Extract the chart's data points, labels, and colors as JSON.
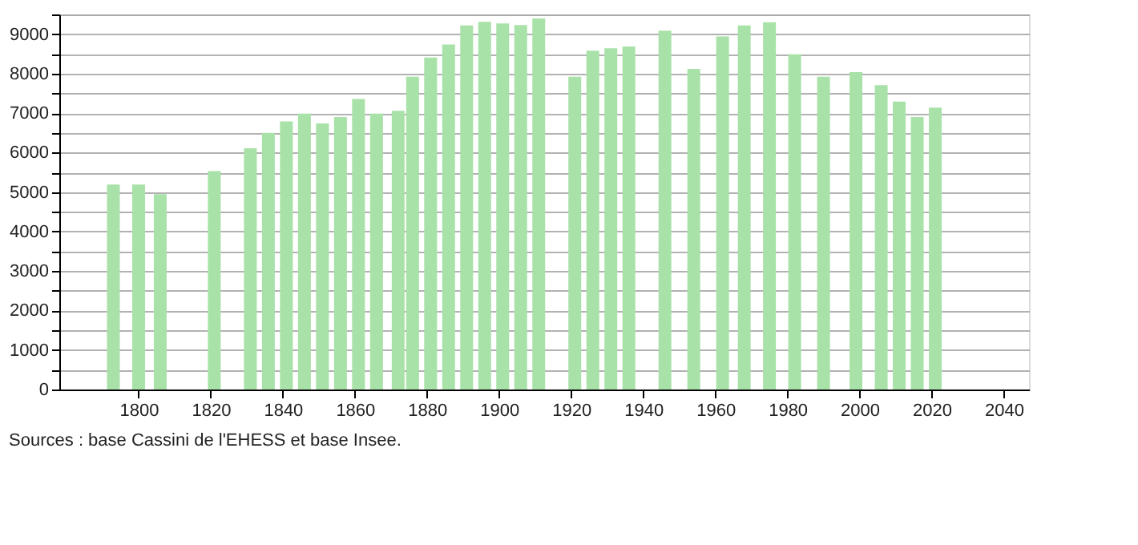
{
  "chart_data": {
    "type": "bar",
    "x": [
      1793,
      1800,
      1806,
      1821,
      1831,
      1836,
      1841,
      1846,
      1851,
      1856,
      1861,
      1866,
      1872,
      1876,
      1881,
      1886,
      1891,
      1896,
      1901,
      1906,
      1911,
      1921,
      1926,
      1931,
      1936,
      1946,
      1954,
      1962,
      1968,
      1975,
      1982,
      1990,
      1999,
      2006,
      2011,
      2016,
      2021
    ],
    "series": [
      {
        "color": "#a8e2a8",
        "values": [
          5190,
          5190,
          4950,
          5530,
          6110,
          6500,
          6790,
          6990,
          6740,
          6900,
          7360,
          6990,
          7060,
          7920,
          8410,
          8740,
          9220,
          9310,
          9270,
          9230,
          9400,
          7920,
          8580,
          8640,
          8690,
          9090,
          8120,
          8940,
          9220,
          9300,
          8490,
          7920,
          8040,
          7710,
          7290,
          6900,
          7140
        ]
      }
    ],
    "xlim": [
      1778,
      2047
    ],
    "xticks": [
      1800,
      1820,
      1840,
      1860,
      1880,
      1900,
      1920,
      1940,
      1960,
      1980,
      2000,
      2020,
      2040
    ],
    "ylim": [
      0,
      9500
    ],
    "yticks": [
      0,
      {
        "value": 500,
        "label": null
      },
      1000,
      {
        "value": 1500,
        "label": null
      },
      2000,
      {
        "value": 2500,
        "label": null
      },
      3000,
      {
        "value": 3500,
        "label": null
      },
      4000,
      {
        "value": 4500,
        "label": null
      },
      5000,
      {
        "value": 5500,
        "label": null
      },
      6000,
      {
        "value": 6500,
        "label": null
      },
      7000,
      {
        "value": 7500,
        "label": null
      },
      8000,
      {
        "value": 8500,
        "label": null
      },
      9000,
      {
        "value": 9500,
        "label": null
      }
    ],
    "grid": "y",
    "annotations": [
      "Sources : base Cassini de l'EHESS et base Insee."
    ]
  }
}
